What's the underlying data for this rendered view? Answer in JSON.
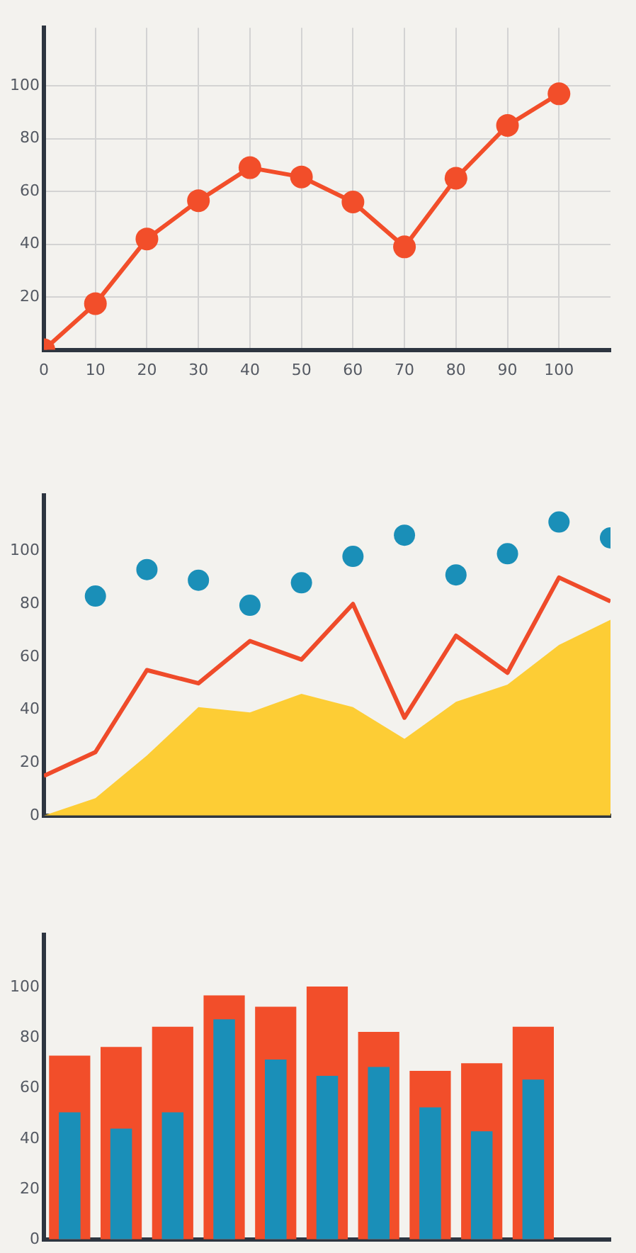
{
  "chart_data": [
    {
      "type": "line",
      "x": [
        0,
        10,
        20,
        30,
        40,
        50,
        60,
        70,
        80,
        90,
        100
      ],
      "xlim": [
        0,
        110
      ],
      "xticks": [
        0,
        10,
        20,
        30,
        40,
        50,
        60,
        70,
        80,
        90,
        100
      ],
      "ylim": [
        0,
        122
      ],
      "yticks": [
        20,
        40,
        60,
        80,
        100
      ],
      "grid": true,
      "marker": "circle",
      "legend": false,
      "series": [
        {
          "color": "#f24e2a",
          "values": [
            0,
            17.5,
            42,
            56.5,
            69,
            65.5,
            56,
            39,
            65,
            85,
            97
          ]
        }
      ]
    },
    {
      "type": "line",
      "x": [
        0,
        10,
        20,
        30,
        40,
        50,
        60,
        70,
        80,
        90,
        100,
        110
      ],
      "xlim": [
        0,
        110
      ],
      "ylim": [
        0,
        121
      ],
      "yticks": [
        0,
        20,
        40,
        60,
        80,
        100
      ],
      "tick_labels": "y",
      "legend": false,
      "series": [
        {
          "type": "area",
          "color": "#fdcd35",
          "values": [
            0,
            6.6,
            22.7,
            41,
            39,
            46,
            41,
            29,
            43,
            49.5,
            64.5,
            74
          ]
        },
        {
          "type": "line",
          "color": "#ef4b2a",
          "values": [
            15,
            24,
            55,
            50,
            66,
            59,
            80,
            37,
            68,
            54,
            90,
            81
          ]
        },
        {
          "type": "scatter",
          "color": "#1a8fb8",
          "x": [
            10,
            20,
            30,
            40,
            50,
            60,
            70,
            80,
            90,
            100,
            110
          ],
          "values": [
            83,
            93,
            89,
            79.5,
            88,
            98,
            106,
            91,
            99,
            111,
            105
          ]
        }
      ]
    },
    {
      "type": "bar",
      "categories": [
        null,
        null,
        null,
        null,
        null,
        null,
        null,
        null,
        null,
        null,
        null
      ],
      "ylim": [
        0,
        121
      ],
      "yticks": [
        0,
        20,
        40,
        60,
        80,
        100
      ],
      "tick_labels": "y",
      "legend": false,
      "series": [
        {
          "color": "#f24e2a",
          "values": [
            73,
            76.5,
            84.5,
            97,
            92.5,
            100.5,
            82.5,
            67,
            70,
            84.5,
            null
          ]
        },
        {
          "color": "#1a8fb8",
          "values": [
            50.5,
            44,
            50.5,
            87.5,
            71.5,
            65,
            68.5,
            52.5,
            43,
            63.5,
            null
          ]
        }
      ]
    }
  ]
}
